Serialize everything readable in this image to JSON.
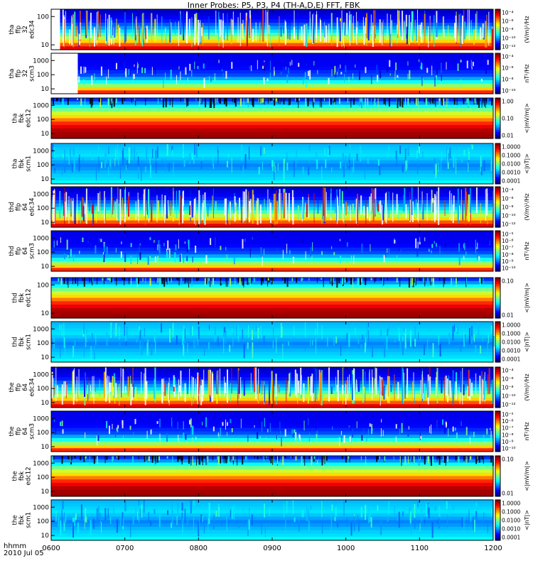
{
  "title": "Inner Probes: P5, P3, P4 (TH-A,D,E) FFT, FBK",
  "time_axis": {
    "row1_label": "hhmm",
    "row2_label": "2010 Jul 05",
    "ticks": [
      "0600",
      "0700",
      "0800",
      "0900",
      "1000",
      "1100",
      "1200"
    ]
  },
  "chart_data": [
    {
      "type": "heatmap",
      "ylabel": [
        "tha",
        "ffp",
        "32",
        "edc34"
      ],
      "yticks": [
        "100",
        "10"
      ],
      "cbar_label": "(V/m)²/Hz",
      "cbar_ticks": [
        "10⁻⁴",
        "10⁻⁶",
        "10⁻⁸",
        "10⁻¹⁰",
        "10⁻¹²"
      ],
      "style": "efield",
      "data_start": 0.02
    },
    {
      "type": "heatmap",
      "ylabel": [
        "tha",
        "ffp",
        "32",
        "scm3"
      ],
      "yticks": [
        "1000",
        "100",
        "10"
      ],
      "cbar_label": "nT²/Hz",
      "cbar_ticks": [
        "10⁻⁴",
        "10⁻⁶",
        "10⁻⁸",
        "10⁻¹⁰"
      ],
      "style": "bfield",
      "data_start": 0.06
    },
    {
      "type": "heatmap",
      "ylabel": [
        "tha",
        "fbk",
        "edc12"
      ],
      "yticks": [
        "1000",
        "100",
        "10"
      ],
      "cbar_label": "<|mV/m|>",
      "cbar_ticks": [
        "1.00",
        "0.10",
        "0.01"
      ],
      "style": "fbk_e",
      "data_start": 0.0
    },
    {
      "type": "heatmap",
      "ylabel": [
        "tha",
        "fbk",
        "scm1"
      ],
      "yticks": [
        "1000",
        "100",
        "10"
      ],
      "cbar_label": "<|nT|>",
      "cbar_ticks": [
        "1.0000",
        "0.1000",
        "0.0100",
        "0.0010",
        "0.0001"
      ],
      "style": "fbk_b",
      "data_start": 0.0
    },
    {
      "type": "heatmap",
      "ylabel": [
        "thd",
        "ffp",
        "64",
        "edc34"
      ],
      "yticks": [
        "1000",
        "100",
        "10"
      ],
      "cbar_label": "(V/m)²/Hz",
      "cbar_ticks": [
        "10⁻⁴",
        "10⁻⁶",
        "10⁻⁸",
        "10⁻¹⁰",
        "10⁻¹²"
      ],
      "style": "efield",
      "data_start": 0.0
    },
    {
      "type": "heatmap",
      "ylabel": [
        "thd",
        "ffp",
        "64",
        "scm3"
      ],
      "yticks": [
        "1000",
        "100",
        "10"
      ],
      "cbar_label": "nT²/Hz",
      "cbar_ticks": [
        "10⁻⁵",
        "10⁻⁶",
        "10⁻⁷",
        "10⁻⁸",
        "10⁻⁹",
        "10⁻¹⁰"
      ],
      "style": "bfield",
      "data_start": 0.0
    },
    {
      "type": "heatmap",
      "ylabel": [
        "thd",
        "fbk",
        "edc12"
      ],
      "yticks": [
        "100",
        "10"
      ],
      "cbar_label": "<|mV/m|>",
      "cbar_ticks": [
        "0.10",
        "0.01"
      ],
      "style": "fbk_e",
      "data_start": 0.0
    },
    {
      "type": "heatmap",
      "ylabel": [
        "thd",
        "fbk",
        "scm1"
      ],
      "yticks": [
        "1000",
        "100",
        "10"
      ],
      "cbar_label": "<|nT|>",
      "cbar_ticks": [
        "1.0000",
        "0.1000",
        "0.0100",
        "0.0010",
        "0.0001"
      ],
      "style": "fbk_b",
      "data_start": 0.0
    },
    {
      "type": "heatmap",
      "ylabel": [
        "the",
        "ffp",
        "64",
        "edc34"
      ],
      "yticks": [
        "1000",
        "100",
        "10"
      ],
      "cbar_label": "(V/m)²/Hz",
      "cbar_ticks": [
        "10⁻⁴",
        "10⁻⁶",
        "10⁻⁸",
        "10⁻¹⁰",
        "10⁻¹²"
      ],
      "style": "efield",
      "data_start": 0.0
    },
    {
      "type": "heatmap",
      "ylabel": [
        "the",
        "ffp",
        "64",
        "scm3"
      ],
      "yticks": [
        "1000",
        "100",
        "10"
      ],
      "cbar_label": "nT²/Hz",
      "cbar_ticks": [
        "10⁻⁵",
        "10⁻⁶",
        "10⁻⁷",
        "10⁻⁸",
        "10⁻⁹",
        "10⁻¹⁰"
      ],
      "style": "bfield",
      "data_start": 0.0
    },
    {
      "type": "heatmap",
      "ylabel": [
        "the",
        "fbk",
        "edc12"
      ],
      "yticks": [
        "1000",
        "100",
        "10"
      ],
      "cbar_label": "<|mV/m|>",
      "cbar_ticks": [
        "0.10",
        "0.01"
      ],
      "style": "fbk_e",
      "data_start": 0.0
    },
    {
      "type": "heatmap",
      "ylabel": [
        "the",
        "fbk",
        "scm1"
      ],
      "yticks": [
        "1000",
        "100",
        "10"
      ],
      "cbar_label": "<|nT|>",
      "cbar_ticks": [
        "1.0000",
        "0.1000",
        "0.0100",
        "0.0010",
        "0.0001"
      ],
      "style": "fbk_b",
      "data_start": 0.0
    }
  ]
}
